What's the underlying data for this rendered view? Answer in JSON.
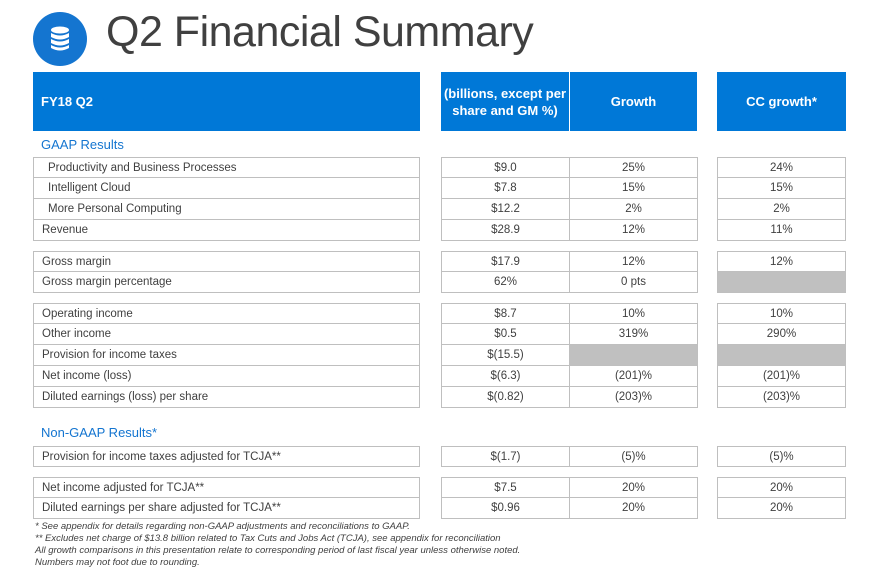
{
  "title": "Q2 Financial Summary",
  "title_icon": "database-icon",
  "header": {
    "label": "FY18 Q2",
    "col1": "(billions, except per share and GM %)",
    "col2": "Growth",
    "col3": "CC growth*"
  },
  "sections": {
    "gaap": "GAAP Results",
    "nongaap": "Non-GAAP Results*"
  },
  "rows": {
    "pbp": {
      "label": "Productivity and Business Processes",
      "value": "$9.0",
      "growth": "25%",
      "cc": "24%"
    },
    "ic": {
      "label": "Intelligent Cloud",
      "value": "$7.8",
      "growth": "15%",
      "cc": "15%"
    },
    "mpc": {
      "label": "More Personal Computing",
      "value": "$12.2",
      "growth": "2%",
      "cc": "2%"
    },
    "rev": {
      "label": "Revenue",
      "value": "$28.9",
      "growth": "12%",
      "cc": "11%"
    },
    "gm": {
      "label": "Gross margin",
      "value": "$17.9",
      "growth": "12%",
      "cc": "12%"
    },
    "gmp": {
      "label": "Gross margin percentage",
      "value": "62%",
      "growth": "0 pts",
      "cc": ""
    },
    "oi": {
      "label": "Operating income",
      "value": "$8.7",
      "growth": "10%",
      "cc": "10%"
    },
    "oth": {
      "label": "Other income",
      "value": "$0.5",
      "growth": "319%",
      "cc": "290%"
    },
    "prov": {
      "label": "Provision for income taxes",
      "value": "$(15.5)",
      "growth": "",
      "cc": ""
    },
    "ni": {
      "label": "Net income (loss)",
      "value": "$(6.3)",
      "growth": "(201)%",
      "cc": "(201)%"
    },
    "eps": {
      "label": "Diluted earnings (loss) per share",
      "value": "$(0.82)",
      "growth": "(203)%",
      "cc": "(203)%"
    },
    "provadj": {
      "label": "Provision for income taxes adjusted for TCJA**",
      "value": "$(1.7)",
      "growth": "(5)%",
      "cc": "(5)%"
    },
    "niadj": {
      "label": "Net income adjusted for TCJA**",
      "value": "$7.5",
      "growth": "20%",
      "cc": "20%"
    },
    "epsadj": {
      "label": "Diluted earnings per share adjusted for TCJA**",
      "value": "$0.96",
      "growth": "20%",
      "cc": "20%"
    }
  },
  "footnotes": [
    "* See appendix for details regarding non-GAAP adjustments and reconciliations to GAAP.",
    "** Excludes net charge of $13.8 billion related to Tax Cuts and Jobs Act (TCJA), see appendix for reconciliation",
    "All growth comparisons in this presentation relate to corresponding period of last fiscal year unless otherwise noted.",
    "Numbers may not foot due to rounding."
  ],
  "colors": {
    "accent": "#0078d7",
    "shade": "#c0c0c0",
    "text": "#404040"
  }
}
